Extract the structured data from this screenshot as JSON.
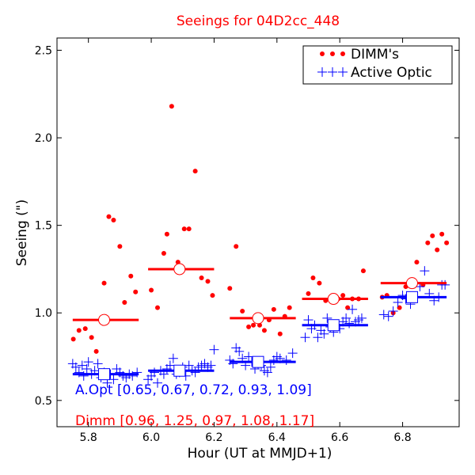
{
  "chart_data": {
    "type": "scatter",
    "title": "Seeings for 04D2cc_448",
    "xlabel": "Hour (UT at MMJD+1)",
    "ylabel": "Seeing (\")",
    "xlim": [
      5.7,
      6.98
    ],
    "ylim": [
      0.35,
      2.57
    ],
    "x_ticks": [
      5.8,
      6.0,
      6.2,
      6.4,
      6.6,
      6.8
    ],
    "x_tick_labels": [
      "5.8",
      "6.0",
      "6.2",
      "6.4",
      "6.6",
      "6.8"
    ],
    "y_ticks": [
      0.5,
      1.0,
      1.5,
      2.0,
      2.5
    ],
    "y_tick_labels": [
      "0.5",
      "1.0",
      "1.5",
      "2.0",
      "2.5"
    ],
    "grid": false,
    "legend_position": "top-right",
    "colors": {
      "dimm": "#ff0000",
      "aopt": "#0000ff",
      "title": "#ff0000"
    },
    "series": [
      {
        "name": "DIMM's",
        "marker": "dot",
        "color": "#ff0000",
        "points": [
          [
            5.752,
            0.85
          ],
          [
            5.77,
            0.9
          ],
          [
            5.79,
            0.91
          ],
          [
            5.81,
            0.86
          ],
          [
            5.825,
            0.78
          ],
          [
            5.85,
            1.17
          ],
          [
            5.865,
            1.55
          ],
          [
            5.88,
            1.53
          ],
          [
            5.9,
            1.38
          ],
          [
            5.915,
            1.06
          ],
          [
            5.935,
            1.21
          ],
          [
            5.95,
            1.12
          ],
          [
            6.0,
            1.13
          ],
          [
            6.02,
            1.03
          ],
          [
            6.04,
            1.34
          ],
          [
            6.05,
            1.45
          ],
          [
            6.065,
            2.18
          ],
          [
            6.085,
            1.29
          ],
          [
            6.105,
            1.48
          ],
          [
            6.12,
            1.48
          ],
          [
            6.14,
            1.81
          ],
          [
            6.16,
            1.2
          ],
          [
            6.18,
            1.18
          ],
          [
            6.195,
            1.1
          ],
          [
            6.25,
            1.14
          ],
          [
            6.27,
            1.38
          ],
          [
            6.29,
            1.01
          ],
          [
            6.31,
            0.92
          ],
          [
            6.325,
            0.93
          ],
          [
            6.345,
            0.93
          ],
          [
            6.36,
            0.9
          ],
          [
            6.375,
            0.96
          ],
          [
            6.39,
            1.02
          ],
          [
            6.41,
            0.88
          ],
          [
            6.425,
            0.98
          ],
          [
            6.44,
            1.03
          ],
          [
            6.5,
            1.11
          ],
          [
            6.515,
            1.2
          ],
          [
            6.535,
            1.17
          ],
          [
            6.555,
            1.07
          ],
          [
            6.575,
            1.09
          ],
          [
            6.595,
            1.08
          ],
          [
            6.61,
            1.1
          ],
          [
            6.625,
            1.03
          ],
          [
            6.64,
            1.08
          ],
          [
            6.66,
            1.08
          ],
          [
            6.675,
            1.24
          ],
          [
            6.735,
            1.09
          ],
          [
            6.75,
            1.1
          ],
          [
            6.77,
            1.0
          ],
          [
            6.79,
            1.03
          ],
          [
            6.81,
            1.15
          ],
          [
            6.83,
            1.19
          ],
          [
            6.845,
            1.29
          ],
          [
            6.865,
            1.16
          ],
          [
            6.88,
            1.4
          ],
          [
            6.895,
            1.44
          ],
          [
            6.91,
            1.36
          ],
          [
            6.925,
            1.45
          ],
          [
            6.94,
            1.4
          ]
        ]
      },
      {
        "name": "Active Optic",
        "marker": "plus",
        "color": "#0000ff",
        "points": [
          [
            5.75,
            0.71
          ],
          [
            5.76,
            0.69
          ],
          [
            5.77,
            0.66
          ],
          [
            5.78,
            0.7
          ],
          [
            5.785,
            0.64
          ],
          [
            5.795,
            0.68
          ],
          [
            5.8,
            0.72
          ],
          [
            5.81,
            0.65
          ],
          [
            5.82,
            0.67
          ],
          [
            5.83,
            0.71
          ],
          [
            5.84,
            0.63
          ],
          [
            5.85,
            0.66
          ],
          [
            5.86,
            0.6
          ],
          [
            5.87,
            0.65
          ],
          [
            5.88,
            0.62
          ],
          [
            5.89,
            0.68
          ],
          [
            5.9,
            0.66
          ],
          [
            5.91,
            0.64
          ],
          [
            5.92,
            0.63
          ],
          [
            5.93,
            0.65
          ],
          [
            5.94,
            0.64
          ],
          [
            5.955,
            0.66
          ],
          [
            5.99,
            0.62
          ],
          [
            6.0,
            0.64
          ],
          [
            6.01,
            0.66
          ],
          [
            6.02,
            0.6
          ],
          [
            6.03,
            0.67
          ],
          [
            6.04,
            0.65
          ],
          [
            6.05,
            0.68
          ],
          [
            6.06,
            0.7
          ],
          [
            6.07,
            0.74
          ],
          [
            6.08,
            0.65
          ],
          [
            6.09,
            0.66
          ],
          [
            6.1,
            0.69
          ],
          [
            6.11,
            0.64
          ],
          [
            6.12,
            0.7
          ],
          [
            6.13,
            0.67
          ],
          [
            6.14,
            0.66
          ],
          [
            6.15,
            0.69
          ],
          [
            6.16,
            0.7
          ],
          [
            6.17,
            0.71
          ],
          [
            6.18,
            0.69
          ],
          [
            6.19,
            0.7
          ],
          [
            6.2,
            0.79
          ],
          [
            6.25,
            0.73
          ],
          [
            6.26,
            0.71
          ],
          [
            6.27,
            0.8
          ],
          [
            6.28,
            0.78
          ],
          [
            6.29,
            0.74
          ],
          [
            6.3,
            0.7
          ],
          [
            6.31,
            0.75
          ],
          [
            6.32,
            0.72
          ],
          [
            6.33,
            0.68
          ],
          [
            6.34,
            0.71
          ],
          [
            6.35,
            0.7
          ],
          [
            6.36,
            0.67
          ],
          [
            6.37,
            0.66
          ],
          [
            6.38,
            0.69
          ],
          [
            6.39,
            0.73
          ],
          [
            6.4,
            0.75
          ],
          [
            6.41,
            0.74
          ],
          [
            6.43,
            0.73
          ],
          [
            6.45,
            0.77
          ],
          [
            6.49,
            0.86
          ],
          [
            6.5,
            0.96
          ],
          [
            6.51,
            0.91
          ],
          [
            6.52,
            0.93
          ],
          [
            6.53,
            0.86
          ],
          [
            6.54,
            0.9
          ],
          [
            6.55,
            0.88
          ],
          [
            6.56,
            0.97
          ],
          [
            6.57,
            0.92
          ],
          [
            6.58,
            0.89
          ],
          [
            6.59,
            0.93
          ],
          [
            6.6,
            0.91
          ],
          [
            6.61,
            0.95
          ],
          [
            6.62,
            0.97
          ],
          [
            6.63,
            0.94
          ],
          [
            6.64,
            1.02
          ],
          [
            6.65,
            0.95
          ],
          [
            6.66,
            0.96
          ],
          [
            6.67,
            0.97
          ],
          [
            6.74,
            0.99
          ],
          [
            6.755,
            0.98
          ],
          [
            6.77,
            1.01
          ],
          [
            6.785,
            1.06
          ],
          [
            6.8,
            1.1
          ],
          [
            6.81,
            1.08
          ],
          [
            6.825,
            1.05
          ],
          [
            6.84,
            1.09
          ],
          [
            6.855,
            1.15
          ],
          [
            6.87,
            1.24
          ],
          [
            6.885,
            1.11
          ],
          [
            6.9,
            1.07
          ],
          [
            6.915,
            1.09
          ],
          [
            6.925,
            1.16
          ],
          [
            6.935,
            1.16
          ]
        ]
      }
    ],
    "dimm_bins": [
      {
        "x_start": 5.75,
        "x_end": 5.96,
        "center": 5.85,
        "value": 0.96
      },
      {
        "x_start": 5.99,
        "x_end": 6.2,
        "center": 6.09,
        "value": 1.25
      },
      {
        "x_start": 6.25,
        "x_end": 6.46,
        "center": 6.34,
        "value": 0.97
      },
      {
        "x_start": 6.48,
        "x_end": 6.69,
        "center": 6.58,
        "value": 1.08
      },
      {
        "x_start": 6.73,
        "x_end": 6.94,
        "center": 6.83,
        "value": 1.17
      }
    ],
    "aopt_bins": [
      {
        "x_start": 5.75,
        "x_end": 5.96,
        "center": 5.85,
        "value": 0.65
      },
      {
        "x_start": 5.99,
        "x_end": 6.2,
        "center": 6.09,
        "value": 0.67
      },
      {
        "x_start": 6.25,
        "x_end": 6.46,
        "center": 6.34,
        "value": 0.72
      },
      {
        "x_start": 6.48,
        "x_end": 6.69,
        "center": 6.58,
        "value": 0.93
      },
      {
        "x_start": 6.73,
        "x_end": 6.94,
        "center": 6.83,
        "value": 1.09
      }
    ],
    "annotations": {
      "aopt": "A.Opt [0.65, 0.67, 0.72, 0.93, 1.09]",
      "dimm": "Dimm [0.96, 1.25, 0.97, 1.08, 1.17]"
    }
  }
}
